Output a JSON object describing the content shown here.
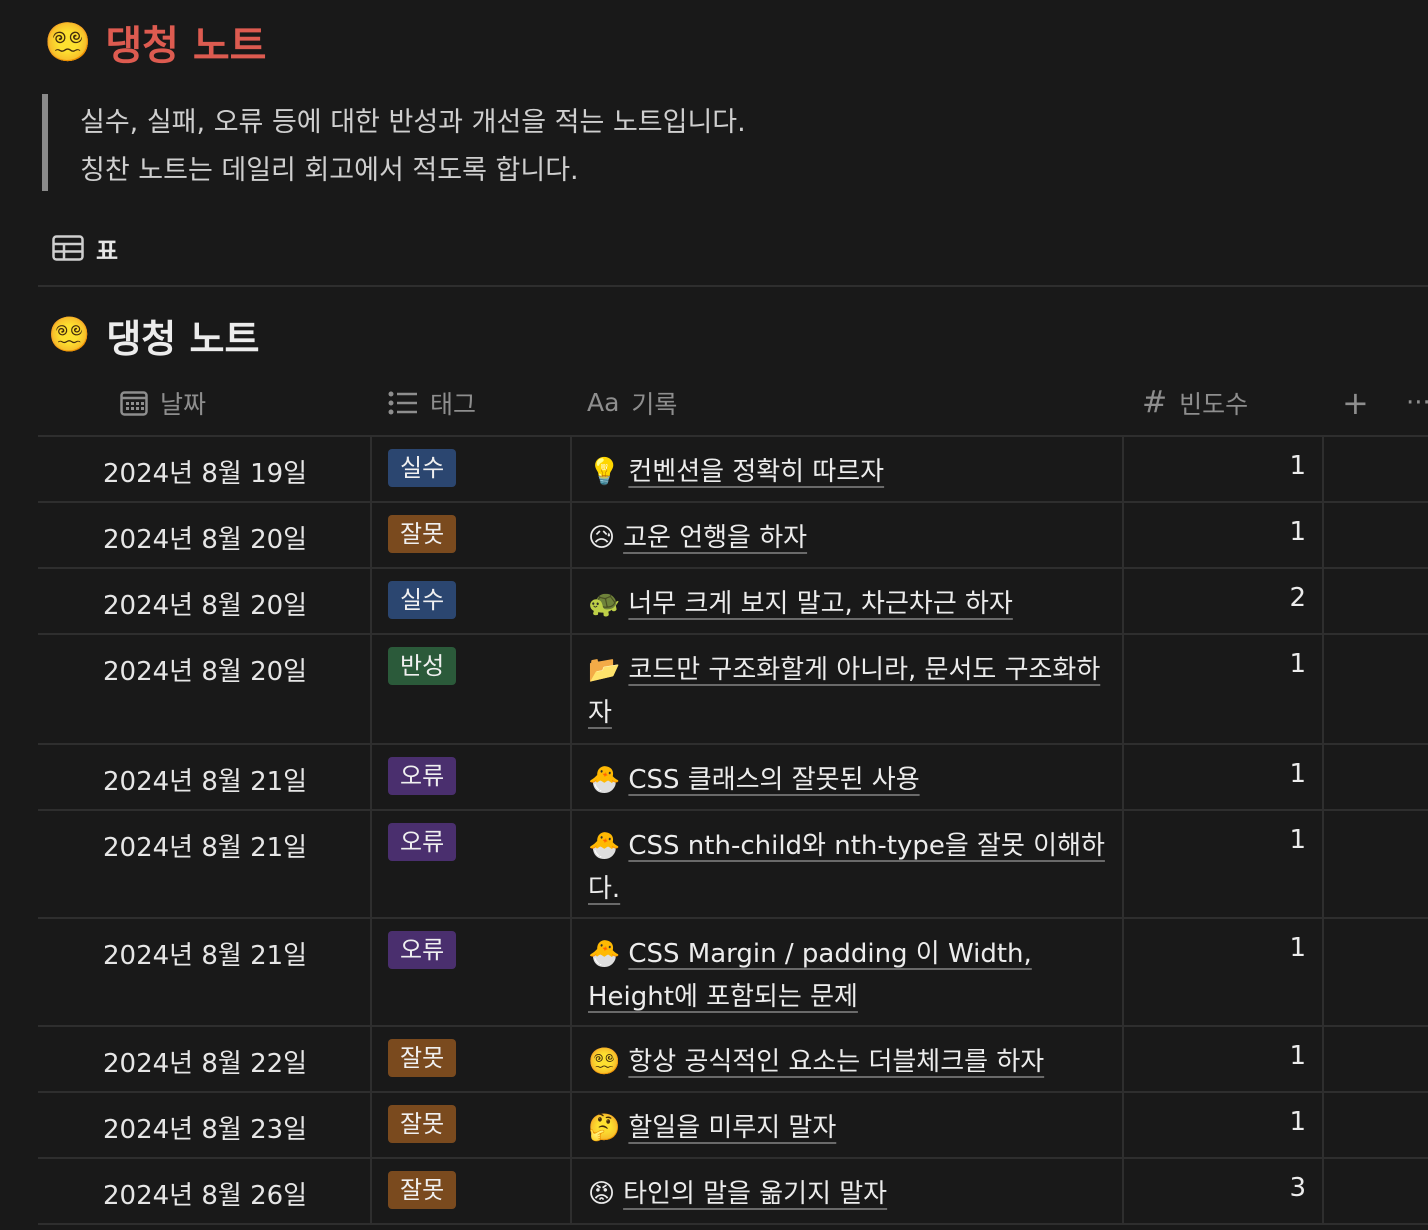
{
  "page": {
    "title": "댕청 노트",
    "title_emoji": "😵‍💫",
    "description_lines": [
      "실수, 실패, 오류 등에 대한 반성과 개선을 적는 노트입니다.",
      "칭찬 노트는 데일리 회고에서 적도록 합니다."
    ]
  },
  "view": {
    "label": "표",
    "icon": "table-icon"
  },
  "database": {
    "title": "댕청 노트",
    "title_emoji": "😵‍💫",
    "columns": [
      {
        "icon": "calendar-icon",
        "label": "날짜"
      },
      {
        "icon": "list-icon",
        "label": "태그"
      },
      {
        "icon": "text-icon",
        "icon_text": "Aa",
        "label": "기록"
      },
      {
        "icon": "number-icon",
        "icon_text": "#",
        "label": "빈도수"
      }
    ],
    "add_column": "+",
    "more": "···",
    "rows": [
      {
        "date": "2024년 8월 19일",
        "tag": "실수",
        "tag_color": "#2b4670",
        "emoji": "💡",
        "record": "컨벤션을 정확히 따르자",
        "freq": "1"
      },
      {
        "date": "2024년 8월 20일",
        "tag": "잘못",
        "tag_color": "#7a4a1e",
        "emoji": "😥",
        "record": "고운 언행을 하자",
        "freq": "1"
      },
      {
        "date": "2024년 8월 20일",
        "tag": "실수",
        "tag_color": "#2b4670",
        "emoji": "🐢",
        "record": "너무 크게 보지 말고, 차근차근 하자",
        "freq": "2"
      },
      {
        "date": "2024년 8월 20일",
        "tag": "반성",
        "tag_color": "#2b5a3a",
        "emoji": "📂",
        "record": "코드만 구조화할게 아니라, 문서도 구조화하자",
        "freq": "1"
      },
      {
        "date": "2024년 8월 21일",
        "tag": "오류",
        "tag_color": "#4a2f6e",
        "emoji": "🐣",
        "record": "CSS 클래스의 잘못된 사용",
        "freq": "1"
      },
      {
        "date": "2024년 8월 21일",
        "tag": "오류",
        "tag_color": "#4a2f6e",
        "emoji": "🐣",
        "record": "CSS nth-child와 nth-type을 잘못 이해하다.",
        "freq": "1"
      },
      {
        "date": "2024년 8월 21일",
        "tag": "오류",
        "tag_color": "#4a2f6e",
        "emoji": "🐣",
        "record": "CSS Margin / padding 이 Width, Height에 포함되는 문제",
        "freq": "1"
      },
      {
        "date": "2024년 8월 22일",
        "tag": "잘못",
        "tag_color": "#7a4a1e",
        "emoji": "😵‍💫",
        "record": "항상 공식적인 요소는 더블체크를 하자",
        "freq": "1"
      },
      {
        "date": "2024년 8월 23일",
        "tag": "잘못",
        "tag_color": "#7a4a1e",
        "emoji": "🤔",
        "record": "할일을 미루지 말자",
        "freq": "1"
      },
      {
        "date": "2024년 8월 26일",
        "tag": "잘못",
        "tag_color": "#7a4a1e",
        "emoji": "😡",
        "record": "타인의 말을 옮기지 말자",
        "freq": "3"
      }
    ]
  }
}
